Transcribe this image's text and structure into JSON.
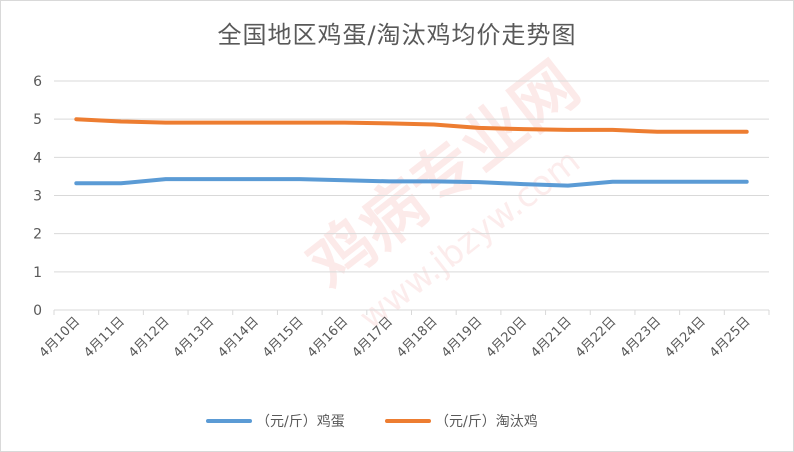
{
  "chart_data": {
    "type": "line",
    "title": "全国地区鸡蛋/淘汰鸡均价走势图",
    "categories": [
      "4月10日",
      "4月11日",
      "4月12日",
      "4月13日",
      "4月14日",
      "4月15日",
      "4月16日",
      "4月17日",
      "4月18日",
      "4月19日",
      "4月20日",
      "4月21日",
      "4月22日",
      "4月23日",
      "4月24日",
      "4月25日"
    ],
    "ylim": [
      0,
      6
    ],
    "yticks": [
      0,
      1,
      2,
      3,
      4,
      5,
      6
    ],
    "grid": true,
    "legend": "bottom",
    "series": [
      {
        "name": "（元/斤）鸡蛋",
        "color": "#5b9bd5",
        "values": [
          3.32,
          3.32,
          3.43,
          3.43,
          3.43,
          3.43,
          3.4,
          3.37,
          3.37,
          3.35,
          3.3,
          3.26,
          3.36,
          3.36,
          3.36,
          3.36
        ]
      },
      {
        "name": "（元/斤）淘汰鸡",
        "color": "#ed7d31",
        "values": [
          5.0,
          4.94,
          4.91,
          4.91,
          4.91,
          4.91,
          4.91,
          4.89,
          4.86,
          4.77,
          4.74,
          4.72,
          4.72,
          4.67,
          4.67,
          4.67
        ]
      }
    ]
  },
  "watermark": {
    "main": "鸡病专业网",
    "url": "www.jbzyw.com"
  }
}
